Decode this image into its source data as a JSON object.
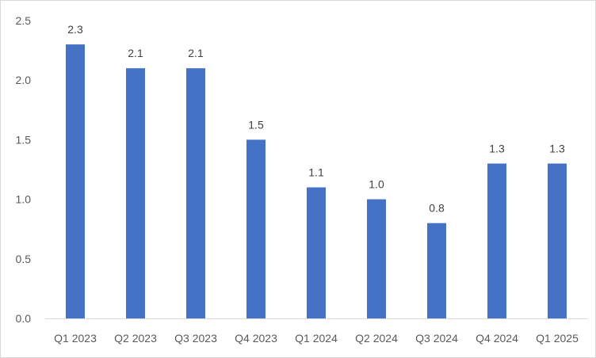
{
  "chart_data": {
    "type": "bar",
    "title": "",
    "xlabel": "",
    "ylabel": "",
    "categories": [
      "Q1 2023",
      "Q2 2023",
      "Q3 2023",
      "Q4 2023",
      "Q1 2024",
      "Q2 2024",
      "Q3 2024",
      "Q4 2024",
      "Q1 2025"
    ],
    "values": [
      2.3,
      2.1,
      2.1,
      1.5,
      1.1,
      1.0,
      0.8,
      1.3,
      1.3
    ],
    "data_labels": [
      "2.3",
      "2.1",
      "2.1",
      "1.5",
      "1.1",
      "1.0",
      "0.8",
      "1.3",
      "1.3"
    ],
    "ylim": [
      0,
      2.5
    ],
    "yticks": [
      0,
      0.5,
      1.0,
      1.5,
      2.0,
      2.5
    ],
    "ytick_labels": [
      "0.0",
      "0.5",
      "1.0",
      "1.5",
      "2.0",
      "2.5"
    ],
    "grid": false,
    "legend": "none",
    "bar_color": "#4472C4",
    "axis_color": "#d9d9d9"
  }
}
